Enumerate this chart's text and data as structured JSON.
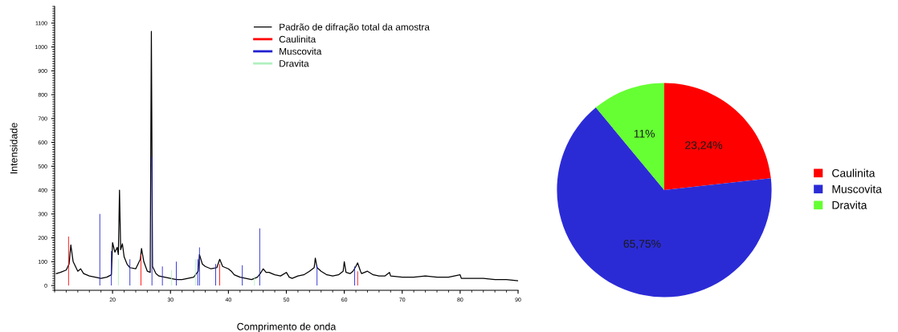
{
  "chart_data": [
    {
      "type": "line",
      "xlabel": "Comprimento de onda",
      "ylabel": "Intensidade",
      "xlim": [
        10,
        90
      ],
      "ylim": [
        -20,
        1170
      ],
      "xticks": [
        20,
        30,
        40,
        50,
        60,
        70,
        80,
        90
      ],
      "yticks": [
        0,
        100,
        200,
        300,
        400,
        500,
        600,
        700,
        800,
        900,
        1000,
        1100
      ],
      "legend": "top",
      "grid": false,
      "series": [
        {
          "name": "Padrão de difração total da amostra",
          "color": "#000000",
          "type": "line",
          "x": [
            10.3,
            11,
            12,
            12.5,
            12.8,
            13.2,
            14,
            14.5,
            15,
            16,
            17,
            18,
            19,
            19.8,
            20,
            20.4,
            20.8,
            21.0,
            21.2,
            21.4,
            21.7,
            22,
            22.5,
            23,
            24,
            24.8,
            25.0,
            25.4,
            26,
            26.5,
            26.7,
            26.9,
            27.5,
            28,
            29,
            30,
            31,
            32,
            33,
            34,
            34.8,
            35,
            35.5,
            36,
            37,
            38,
            38.5,
            39,
            40,
            40.5,
            41,
            42,
            43,
            44,
            45,
            45.5,
            46,
            46.5,
            47,
            48,
            49,
            50,
            50.5,
            51,
            52,
            53,
            54,
            54.8,
            55.0,
            55.3,
            56,
            57,
            58,
            59,
            59.8,
            60,
            60.3,
            61,
            61.5,
            62,
            62.3,
            62.8,
            63,
            64,
            65,
            66,
            67,
            67.8,
            68,
            70,
            72,
            74,
            76,
            78,
            80,
            80.2,
            82,
            84,
            86,
            88,
            90
          ],
          "values": [
            50,
            55,
            65,
            90,
            170,
            100,
            60,
            70,
            50,
            40,
            35,
            30,
            35,
            45,
            180,
            140,
            160,
            130,
            400,
            150,
            175,
            120,
            90,
            75,
            70,
            110,
            155,
            100,
            60,
            55,
            1065,
            80,
            50,
            40,
            35,
            30,
            25,
            25,
            30,
            35,
            60,
            130,
            90,
            80,
            70,
            75,
            110,
            80,
            70,
            60,
            45,
            35,
            30,
            25,
            35,
            50,
            70,
            55,
            55,
            45,
            40,
            55,
            35,
            30,
            40,
            45,
            60,
            75,
            115,
            75,
            60,
            45,
            40,
            45,
            60,
            100,
            55,
            50,
            60,
            80,
            95,
            60,
            50,
            60,
            45,
            40,
            40,
            55,
            40,
            35,
            35,
            40,
            35,
            35,
            45,
            30,
            30,
            30,
            25,
            25,
            20
          ]
        },
        {
          "name": "Caulinita",
          "color": "#ff0000",
          "type": "bar",
          "x": [
            12.4,
            24.9,
            38.5,
            62.3
          ],
          "values": [
            205,
            130,
            90,
            60
          ]
        },
        {
          "name": "Muscovita",
          "color": "#2020d0",
          "type": "bar",
          "x": [
            17.8,
            19.8,
            23.0,
            26.8,
            28.6,
            31.0,
            34.7,
            35.0,
            37.8,
            42.4,
            45.4,
            55.3,
            61.8
          ],
          "values": [
            300,
            145,
            110,
            540,
            80,
            100,
            110,
            160,
            90,
            85,
            240,
            85,
            80
          ]
        },
        {
          "name": "Dravita",
          "color": "#b0f0c0",
          "type": "bar",
          "x": [
            21.0,
            30.2,
            34.3,
            44.5
          ],
          "values": [
            110,
            65,
            110,
            40
          ]
        }
      ]
    },
    {
      "type": "pie",
      "categories": [
        "Caulinita",
        "Muscovita",
        "Dravita"
      ],
      "values": [
        23.24,
        65.75,
        11
      ],
      "colors": [
        "#ff0000",
        "#2b2bd6",
        "#66ff33"
      ],
      "value_labels": [
        "23,24%",
        "65,75%",
        "11%"
      ],
      "legend": "right"
    }
  ]
}
